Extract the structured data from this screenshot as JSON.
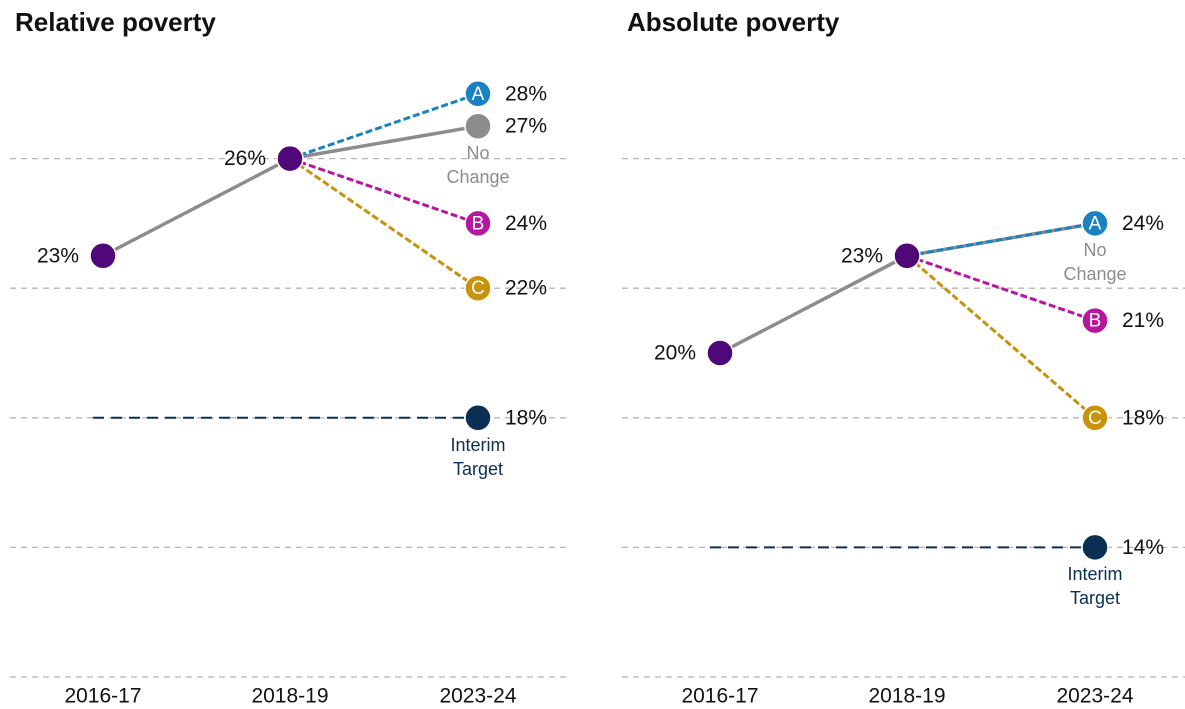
{
  "chart_data": [
    {
      "type": "line",
      "title": "Relative poverty",
      "categories": [
        "2016-17",
        "2018-19",
        "2023-24"
      ],
      "ylim": [
        10,
        29
      ],
      "yticks": [
        10,
        14,
        18,
        22,
        26
      ],
      "grid": true,
      "series": [
        {
          "color": "#8c8c8c",
          "marker_color": "#500778",
          "marker": "all",
          "dash": false,
          "values": [
            23,
            26,
            null
          ],
          "value_labels": [
            "23%",
            "26%",
            null
          ]
        },
        {
          "name": "No Change",
          "color": "#8c8c8c",
          "marker": "end",
          "dash": false,
          "values": [
            null,
            26,
            27
          ],
          "value_labels": [
            null,
            null,
            "27%"
          ]
        },
        {
          "name": "A",
          "color": "#1a82c0",
          "marker": "end",
          "dash": true,
          "values": [
            null,
            26,
            28
          ],
          "value_labels": [
            null,
            null,
            "28%"
          ]
        },
        {
          "name": "B",
          "color": "#b5179e",
          "marker": "end",
          "dash": true,
          "values": [
            null,
            26,
            24
          ],
          "value_labels": [
            null,
            null,
            "24%"
          ]
        },
        {
          "name": "C",
          "color": "#c8930a",
          "marker": "end",
          "dash": true,
          "values": [
            null,
            26,
            22
          ],
          "value_labels": [
            null,
            null,
            "22%"
          ]
        },
        {
          "name": "Interim Target",
          "color": "#0b2f52",
          "marker": "end",
          "dash": true,
          "values": [
            18,
            18,
            18
          ],
          "value_labels": [
            null,
            null,
            "18%"
          ]
        }
      ]
    },
    {
      "type": "line",
      "title": "Absolute poverty",
      "categories": [
        "2016-17",
        "2018-19",
        "2023-24"
      ],
      "ylim": [
        10,
        29
      ],
      "yticks": [
        10,
        14,
        18,
        22,
        26
      ],
      "grid": true,
      "series": [
        {
          "color": "#8c8c8c",
          "marker_color": "#500778",
          "marker": "all",
          "dash": false,
          "values": [
            20,
            23,
            null
          ],
          "value_labels": [
            "20%",
            "23%",
            null
          ]
        },
        {
          "name": "No Change",
          "color": "#8c8c8c",
          "marker": "end",
          "dash": false,
          "values": [
            null,
            23,
            24
          ]
        },
        {
          "name": "A",
          "color": "#1a82c0",
          "marker": "end",
          "dash": true,
          "values": [
            null,
            23,
            24
          ],
          "value_labels": [
            null,
            null,
            "24%"
          ]
        },
        {
          "name": "B",
          "color": "#b5179e",
          "marker": "end",
          "dash": true,
          "values": [
            null,
            23,
            21
          ],
          "value_labels": [
            null,
            null,
            "21%"
          ]
        },
        {
          "name": "C",
          "color": "#c8930a",
          "marker": "end",
          "dash": true,
          "values": [
            null,
            23,
            18
          ],
          "value_labels": [
            null,
            null,
            "18%"
          ]
        },
        {
          "name": "Interim Target",
          "color": "#0b2f52",
          "marker": "end",
          "dash": true,
          "values": [
            14,
            14,
            14
          ],
          "value_labels": [
            null,
            null,
            "14%"
          ]
        }
      ]
    }
  ]
}
